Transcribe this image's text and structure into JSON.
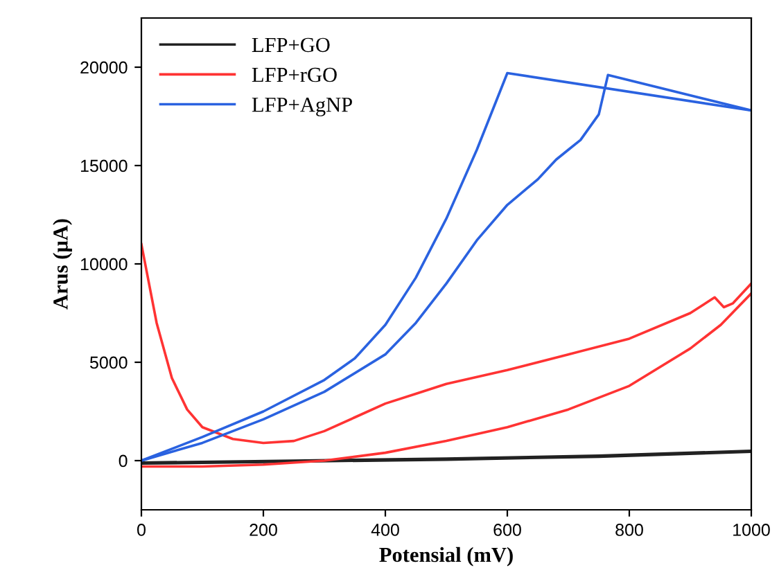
{
  "chart_data": {
    "type": "line",
    "xlabel": "Potensial (mV)",
    "ylabel": "Arus (μA)",
    "xlim": [
      0,
      1000
    ],
    "ylim": [
      -2500,
      22500
    ],
    "xticks": [
      0,
      200,
      400,
      600,
      800,
      1000
    ],
    "yticks": [
      0,
      5000,
      10000,
      15000,
      20000
    ],
    "grid": false,
    "legend": "top left",
    "series": [
      {
        "name": "LFP+GO",
        "color": "#222222",
        "x": [
          0,
          250,
          500,
          750,
          1000
        ],
        "values": [
          -100,
          0,
          100,
          250,
          500
        ]
      },
      {
        "color": "#222222",
        "x": [
          0,
          250,
          500,
          750,
          1000
        ],
        "values": [
          -150,
          -50,
          50,
          200,
          450
        ]
      },
      {
        "name": "LFP+rGO",
        "color": "#ff3333",
        "x": [
          0,
          25,
          50,
          75,
          100,
          150,
          200,
          250,
          300,
          350,
          400,
          450,
          500,
          600,
          700,
          800,
          900,
          940,
          955,
          970,
          985,
          1000
        ],
        "values": [
          11000,
          7000,
          4200,
          2600,
          1700,
          1100,
          900,
          1000,
          1500,
          2200,
          2900,
          3400,
          3900,
          4600,
          5400,
          6200,
          7500,
          8300,
          7800,
          8000,
          8500,
          9000
        ]
      },
      {
        "color": "#ff3333",
        "x": [
          0,
          100,
          200,
          300,
          400,
          500,
          600,
          700,
          800,
          900,
          950,
          1000
        ],
        "values": [
          -300,
          -300,
          -200,
          0,
          400,
          1000,
          1700,
          2600,
          3800,
          5700,
          6900,
          8500
        ]
      },
      {
        "name": "LFP+AgNP",
        "color": "#2a62e0",
        "x": [
          0,
          100,
          200,
          300,
          350,
          400,
          450,
          500,
          550,
          600,
          1000
        ],
        "values": [
          0,
          1200,
          2500,
          4100,
          5200,
          6900,
          9300,
          12300,
          15800,
          19700,
          17800
        ]
      },
      {
        "color": "#2a62e0",
        "x": [
          0,
          100,
          200,
          300,
          400,
          450,
          500,
          550,
          600,
          650,
          680,
          700,
          720,
          750,
          765,
          1000
        ],
        "values": [
          0,
          900,
          2100,
          3500,
          5400,
          7000,
          9000,
          11200,
          13000,
          14300,
          15300,
          15800,
          16300,
          17600,
          19600,
          17800
        ]
      }
    ]
  }
}
